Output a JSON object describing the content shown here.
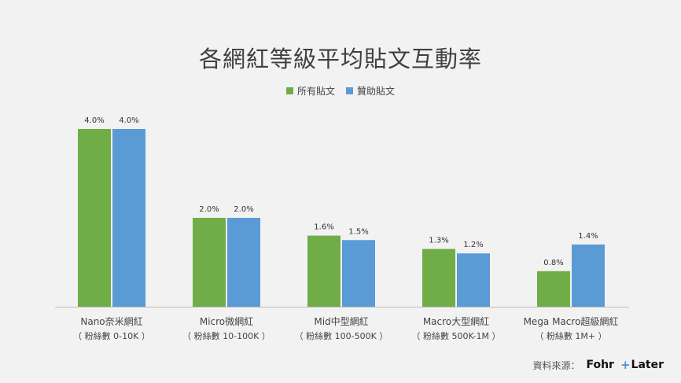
{
  "chart_data": {
    "type": "bar",
    "title": "各網紅等級平均貼文互動率",
    "categories": [
      {
        "name": "Nano奈米網紅",
        "sub": "（ 粉絲數 0-10K ）"
      },
      {
        "name": "Micro微網紅",
        "sub": "（ 粉絲數 10-100K ）"
      },
      {
        "name": "Mid中型網紅",
        "sub": "（ 粉絲數 100-500K ）"
      },
      {
        "name": "Macro大型網紅",
        "sub": "（ 粉絲數 500K-1M ）"
      },
      {
        "name": "Mega Macro超級網紅",
        "sub": "（ 粉絲數 1M+ ）"
      }
    ],
    "series": [
      {
        "name": "所有貼文",
        "color": "#70ad47",
        "values": [
          4.0,
          2.0,
          1.6,
          1.3,
          0.8
        ],
        "labels": [
          "4.0%",
          "2.0%",
          "1.6%",
          "1.3%",
          "0.8%"
        ]
      },
      {
        "name": "贊助貼文",
        "color": "#5b9bd5",
        "values": [
          4.0,
          2.0,
          1.5,
          1.2,
          1.4
        ],
        "labels": [
          "4.0%",
          "2.0%",
          "1.5%",
          "1.2%",
          "1.4%"
        ]
      }
    ],
    "ylim": [
      0,
      4.0
    ],
    "grid": false,
    "legend": "top-center",
    "xlabel": "",
    "ylabel": ""
  },
  "source": {
    "label": "資料來源：",
    "logo1": "Fohr",
    "logo2": "Later"
  }
}
